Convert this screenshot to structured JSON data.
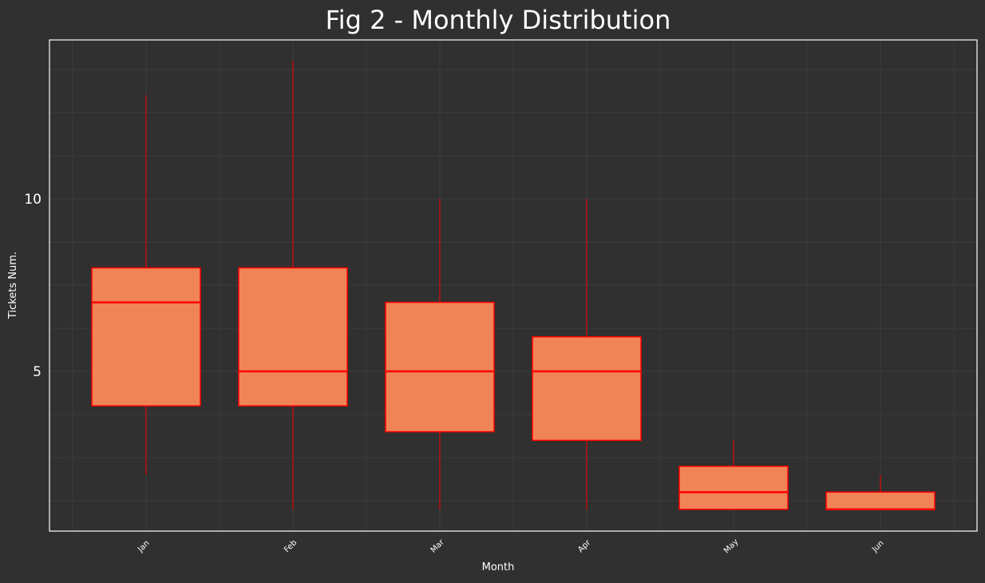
{
  "chart_data": {
    "type": "boxplot",
    "title": "Fig 2 - Monthly Distribution",
    "xlabel": "Month",
    "ylabel": "Tickets Num.",
    "categories": [
      "Jan",
      "Feb",
      "Mar",
      "Apr",
      "May",
      "Jun"
    ],
    "boxes": [
      {
        "min": 2,
        "q1": 4,
        "median": 7,
        "q3": 8,
        "max": 13
      },
      {
        "min": 1,
        "q1": 4,
        "median": 5,
        "q3": 8,
        "max": 14
      },
      {
        "min": 1,
        "q1": 3.25,
        "median": 5,
        "q3": 7,
        "max": 10
      },
      {
        "min": 1,
        "q1": 3,
        "median": 5,
        "q3": 6,
        "max": 10
      },
      {
        "min": 1,
        "q1": 1,
        "median": 1.5,
        "q3": 2.25,
        "max": 3
      },
      {
        "min": 1,
        "q1": 1,
        "median": 1,
        "q3": 1.5,
        "max": 2
      }
    ],
    "yticks": [
      5,
      10
    ],
    "ylim": [
      0.5,
      14.75
    ],
    "grid": true,
    "colors": {
      "background": "#303030",
      "grid": "#3c3c3c",
      "frame": "#ffffff",
      "box_fill": "#f08456",
      "box_edge": "#ff0000",
      "text": "#ffffff"
    }
  }
}
